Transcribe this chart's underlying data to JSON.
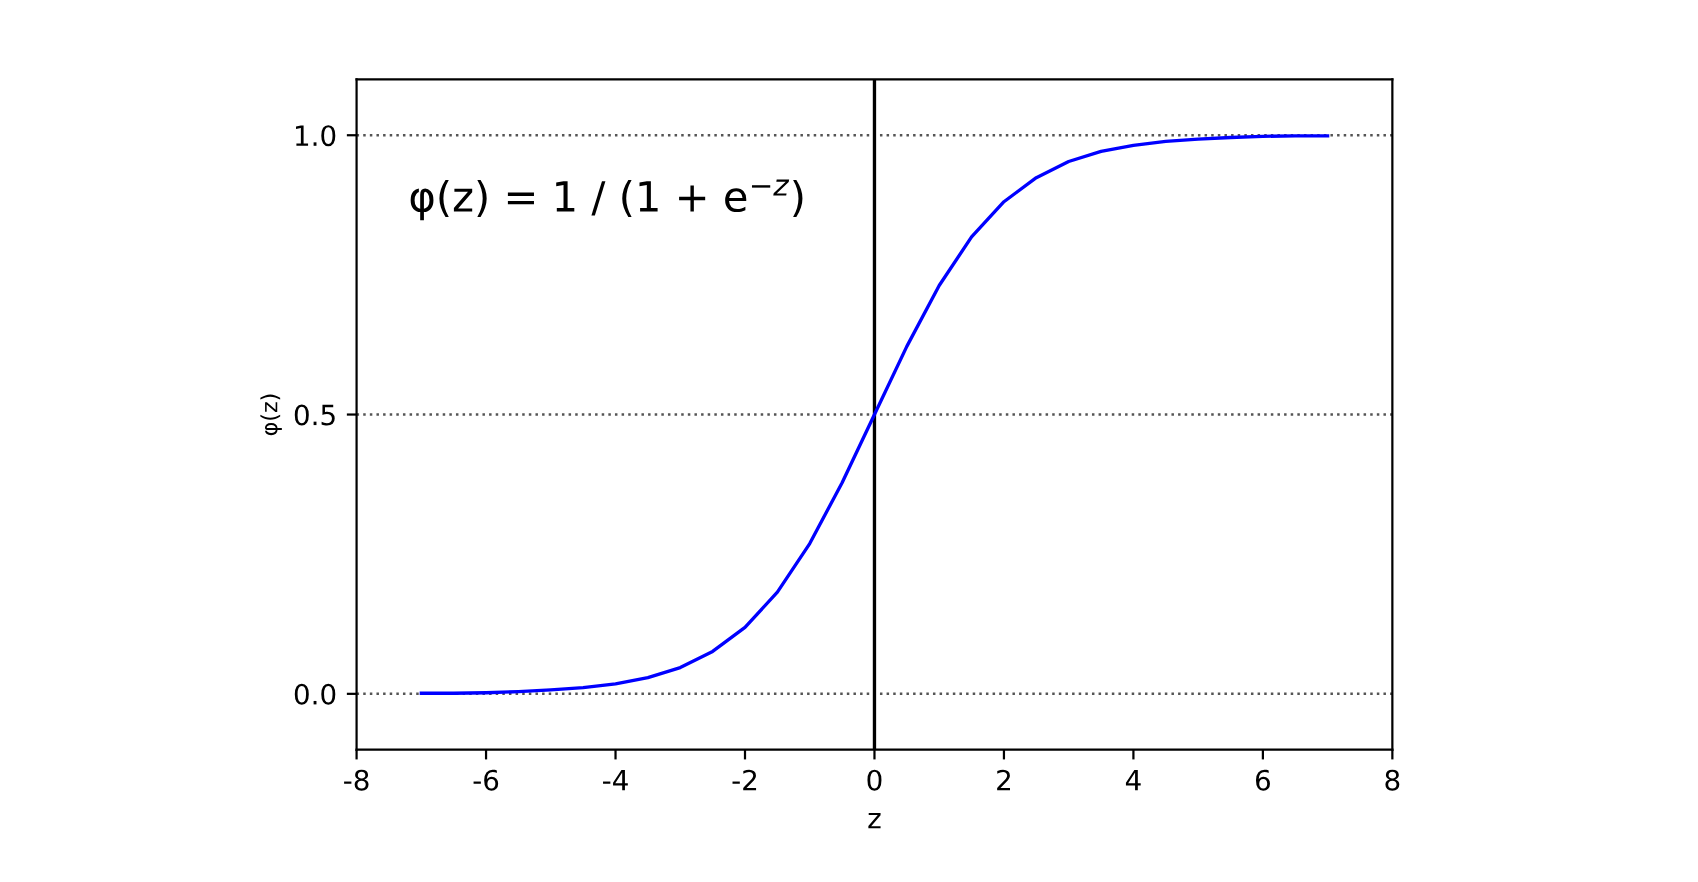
{
  "chart_data": {
    "type": "line",
    "xlabel": "z",
    "ylabel": "φ(z)",
    "annotations": [
      "φ(z) = 1 / (1 + e$^{−z}$)"
    ],
    "x": [
      -7,
      -6.5,
      -6,
      -5.5,
      -5,
      -4.5,
      -4,
      -3.5,
      -3,
      -2.5,
      -2,
      -1.5,
      -1,
      -0.5,
      0,
      0.5,
      1,
      1.5,
      2,
      2.5,
      3,
      3.5,
      4,
      4.5,
      5,
      5.5,
      6,
      6.5,
      7
    ],
    "series": [
      {
        "color": "#0000ff",
        "values": [
          0.001,
          0.001,
          0.002,
          0.004,
          0.007,
          0.011,
          0.018,
          0.029,
          0.047,
          0.076,
          0.119,
          0.182,
          0.269,
          0.378,
          0.5,
          0.622,
          0.731,
          0.818,
          0.881,
          0.924,
          0.953,
          0.971,
          0.982,
          0.989,
          0.993,
          0.996,
          0.998,
          0.999,
          0.999
        ]
      }
    ],
    "xlim": [
      -8,
      8
    ],
    "xticks": [
      -8,
      -6,
      -4,
      -2,
      0,
      2,
      4,
      6,
      8
    ],
    "ylim": [
      -0.1,
      1.1
    ],
    "yticks": [
      {
        "value": 0,
        "label": "0.0"
      },
      {
        "value": 0.5,
        "label": "0.5"
      },
      {
        "value": 1,
        "label": "1.0"
      }
    ],
    "ref_lines": [
      {
        "axis": "x",
        "value": 0,
        "color": "#000000"
      }
    ],
    "grid": "y",
    "line_style": "solid",
    "marker": "none"
  }
}
